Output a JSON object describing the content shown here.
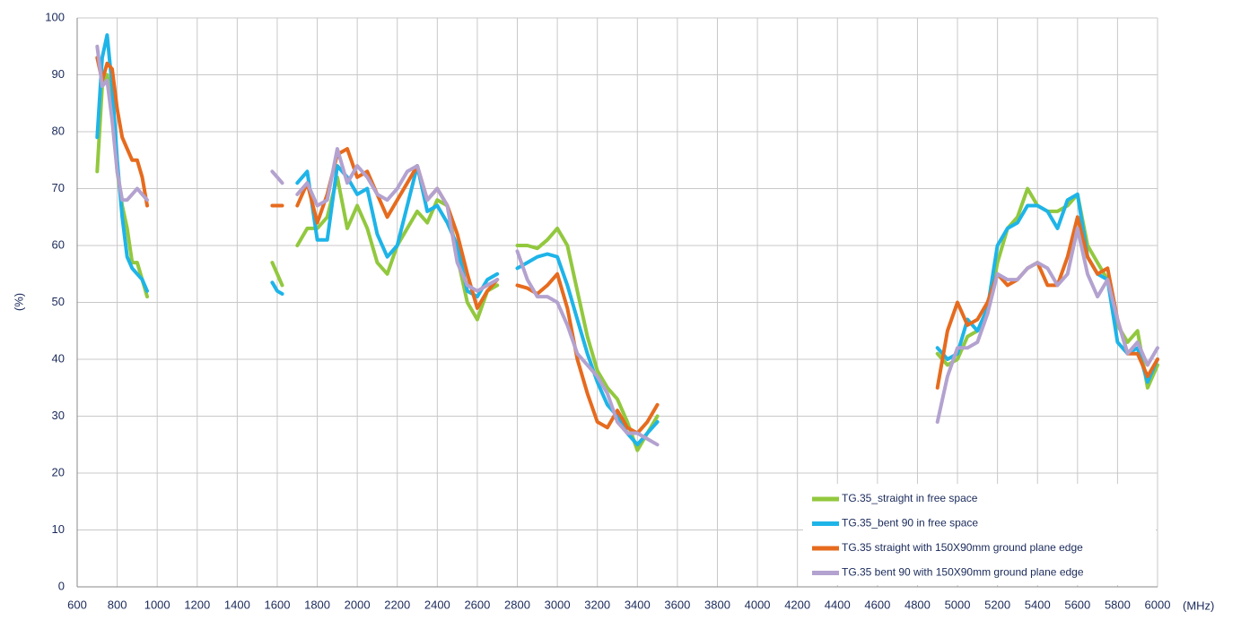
{
  "chart_data": {
    "type": "line",
    "y_label": "(%)",
    "x_label": "(MHz)",
    "x": [
      700,
      725,
      750,
      775,
      800,
      825,
      850,
      875,
      900,
      925,
      950,
      1200,
      1575,
      1600,
      1625,
      1660,
      1700,
      1750,
      1800,
      1850,
      1900,
      1950,
      2000,
      2050,
      2100,
      2150,
      2200,
      2250,
      2300,
      2350,
      2400,
      2450,
      2500,
      2550,
      2600,
      2650,
      2700,
      2750,
      2800,
      2850,
      2900,
      2950,
      3000,
      3050,
      3100,
      3150,
      3200,
      3250,
      3300,
      3350,
      3400,
      3450,
      3500,
      4200,
      4900,
      4950,
      5000,
      5050,
      5100,
      5150,
      5200,
      5250,
      5300,
      5350,
      5400,
      5450,
      5500,
      5550,
      5600,
      5650,
      5700,
      5750,
      5800,
      5850,
      5900,
      5950,
      6000
    ],
    "series": [
      {
        "name": "TG.35_straight in free space",
        "color": "#92c83e",
        "values": [
          73,
          88,
          90,
          85,
          73,
          67,
          63,
          57,
          57,
          54,
          51,
          null,
          57,
          55,
          53,
          null,
          60,
          63,
          63,
          65,
          72,
          63,
          67,
          63,
          57,
          55,
          60,
          63,
          66,
          64,
          68,
          67,
          58,
          50,
          47,
          52,
          53,
          null,
          60,
          60,
          59.5,
          61,
          63,
          60,
          52,
          44,
          38,
          35,
          33,
          29,
          24,
          27,
          30,
          null,
          41,
          39,
          40,
          44,
          45,
          48,
          57,
          63,
          65,
          70,
          67,
          66,
          66,
          67,
          69,
          60,
          57,
          54,
          46,
          43,
          45,
          35,
          39
        ]
      },
      {
        "name": "TG.35_bent 90 in free space",
        "color": "#1eb4e8",
        "values": [
          79,
          93,
          97,
          88,
          75,
          65,
          58,
          56,
          55,
          54,
          52,
          null,
          53.5,
          52,
          51.5,
          null,
          71,
          73,
          61,
          61,
          74,
          72,
          69,
          70,
          62,
          58,
          60,
          67,
          74,
          66,
          67,
          64,
          60,
          52,
          51,
          54,
          55,
          null,
          56,
          57,
          58,
          58.5,
          58,
          53,
          47,
          41,
          36,
          32,
          30,
          27,
          25,
          27,
          29,
          null,
          42,
          40,
          41,
          47,
          45,
          49,
          60,
          63,
          64,
          67,
          67,
          66,
          63,
          68,
          69,
          58,
          55,
          54,
          43,
          41,
          42,
          36,
          40
        ]
      },
      {
        "name": "TG.35 straight with 150X90mm ground plane edge",
        "color": "#e66b1e",
        "values": [
          93,
          89,
          92,
          91,
          84,
          79,
          77,
          75,
          75,
          72,
          67,
          null,
          67,
          67,
          67,
          null,
          67,
          71,
          64,
          69,
          76,
          77,
          72,
          73,
          69,
          65,
          68,
          71,
          74,
          68,
          70,
          67,
          62,
          55,
          49,
          52,
          54,
          null,
          53,
          52.5,
          51.5,
          53,
          55,
          49,
          40,
          34,
          29,
          28,
          31,
          28,
          27,
          29,
          32,
          null,
          35,
          45,
          50,
          46,
          47,
          50,
          55,
          53,
          54,
          56,
          57,
          53,
          53,
          58,
          65,
          58,
          55,
          56,
          47,
          41,
          41,
          37,
          40
        ]
      },
      {
        "name": "TG.35 bent 90 with 150X90mm ground plane edge",
        "color": "#b3a2cf",
        "values": [
          95,
          88,
          89,
          82,
          73,
          68,
          68,
          69,
          70,
          69,
          68,
          null,
          73,
          72,
          71,
          null,
          69,
          71,
          67,
          68,
          77,
          71,
          74,
          72,
          69,
          68,
          70,
          73,
          74,
          68,
          70,
          67,
          57,
          53,
          52,
          53,
          54,
          null,
          59,
          54,
          51,
          51,
          50,
          46,
          41,
          39,
          37,
          34,
          29,
          27,
          27,
          26,
          25,
          null,
          29,
          37,
          42,
          42,
          43,
          48,
          55,
          54,
          54,
          56,
          57,
          56,
          53,
          55,
          63,
          55,
          51,
          54,
          47,
          41,
          43,
          39,
          42
        ]
      }
    ],
    "xlim": [
      600,
      6000
    ],
    "xticks": [
      600,
      800,
      1000,
      1200,
      1400,
      1600,
      1800,
      2000,
      2200,
      2400,
      2600,
      2800,
      3000,
      3200,
      3400,
      3600,
      3800,
      4000,
      4200,
      4400,
      4600,
      4800,
      5000,
      5200,
      5400,
      5600,
      5800,
      6000
    ],
    "ylim": [
      0,
      100
    ],
    "yticks": [
      0,
      10,
      20,
      30,
      40,
      50,
      60,
      70,
      80,
      90,
      100
    ],
    "grid": true,
    "legend": "lower right"
  }
}
